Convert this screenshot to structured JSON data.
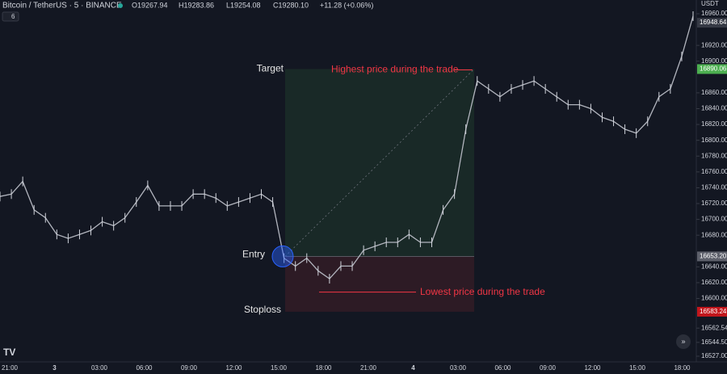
{
  "header": {
    "symbol": "Bitcoin / TetherUS · 5 · BINANCE",
    "open": "O19267.94",
    "high": "H19283.86",
    "low": "L19254.08",
    "close": "C19280.10",
    "change": "+11.28 (+0.06%)",
    "indicator": "6"
  },
  "chart": {
    "currency": "USDT",
    "ylim": [
      16527,
      16960
    ],
    "yticks": [
      {
        "value": 16960,
        "label": "16960.00"
      },
      {
        "value": 16920,
        "label": "16920.00"
      },
      {
        "value": 16900,
        "label": "16900.00"
      },
      {
        "value": 16860,
        "label": "16860.00"
      },
      {
        "value": 16840,
        "label": "16840.00"
      },
      {
        "value": 16820,
        "label": "16820.00"
      },
      {
        "value": 16800,
        "label": "16800.00"
      },
      {
        "value": 16780,
        "label": "16780.00"
      },
      {
        "value": 16760,
        "label": "16760.00"
      },
      {
        "value": 16740,
        "label": "16740.00"
      },
      {
        "value": 16720,
        "label": "16720.00"
      },
      {
        "value": 16700,
        "label": "16700.00"
      },
      {
        "value": 16680,
        "label": "16680.00"
      },
      {
        "value": 16640,
        "label": "16640.00"
      },
      {
        "value": 16620,
        "label": "16620.00"
      },
      {
        "value": 16600,
        "label": "16600.00"
      },
      {
        "value": 16562.54,
        "label": "16562.54"
      },
      {
        "value": 16544.5,
        "label": "16544.50"
      },
      {
        "value": 16527,
        "label": "16527.00"
      }
    ],
    "price_tags": [
      {
        "value": 16948.64,
        "label": "16948.64",
        "color": "#363a45"
      },
      {
        "value": 16890.06,
        "label": "16890.06",
        "color": "#4caf50"
      },
      {
        "value": 16653.2,
        "label": "16653.20",
        "color": "#5d606b"
      },
      {
        "value": 16583.24,
        "label": "16583.24",
        "color": "#c2161c"
      }
    ],
    "xlabels": [
      "21:00",
      "3",
      "03:00",
      "06:00",
      "09:00",
      "12:00",
      "15:00",
      "18:00",
      "21:00",
      "4",
      "03:00",
      "06:00",
      "09:00",
      "12:00",
      "15:00",
      "18:00"
    ],
    "close": [
      16729,
      16732,
      16748,
      16712,
      16702,
      16681,
      16676,
      16681,
      16686,
      16697,
      16692,
      16702,
      16722,
      16743,
      16717,
      16717,
      16717,
      16732,
      16732,
      16727,
      16717,
      16722,
      16727,
      16732,
      16722,
      16651,
      16641,
      16651,
      16635,
      16625,
      16641,
      16641,
      16661,
      16666,
      16671,
      16671,
      16681,
      16671,
      16671,
      16712,
      16732,
      16814,
      16875,
      16865,
      16855,
      16865,
      16870,
      16875,
      16865,
      16855,
      16845,
      16845,
      16840,
      16829,
      16824,
      16814,
      16809,
      16824,
      16855,
      16865,
      16906,
      16957
    ],
    "trade": {
      "target": 16890.06,
      "entry": 16653.2,
      "stop": 16583.24,
      "low": 16608,
      "target_label": "Target",
      "entry_label": "Entry",
      "stop_label": "Stoploss",
      "high_note": "Highest price during the trade",
      "low_note": "Lowest price during the trade"
    }
  }
}
